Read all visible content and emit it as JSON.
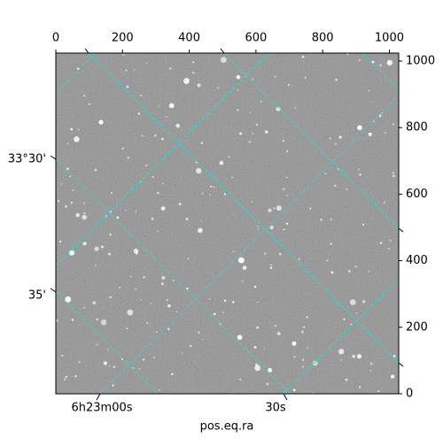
{
  "chart_data": {
    "type": "image",
    "xlabel": "pos.eq.ra",
    "xlim": [
      0,
      1028
    ],
    "ylim": [
      0,
      1024
    ],
    "xticks": [
      0,
      200,
      400,
      600,
      800,
      1000
    ],
    "yticks": [
      0,
      200,
      400,
      600,
      800,
      1000
    ],
    "ra_labels": [
      "6h23m00s",
      "30s"
    ],
    "dec_labels": [
      "33°30'",
      "35'"
    ]
  }
}
